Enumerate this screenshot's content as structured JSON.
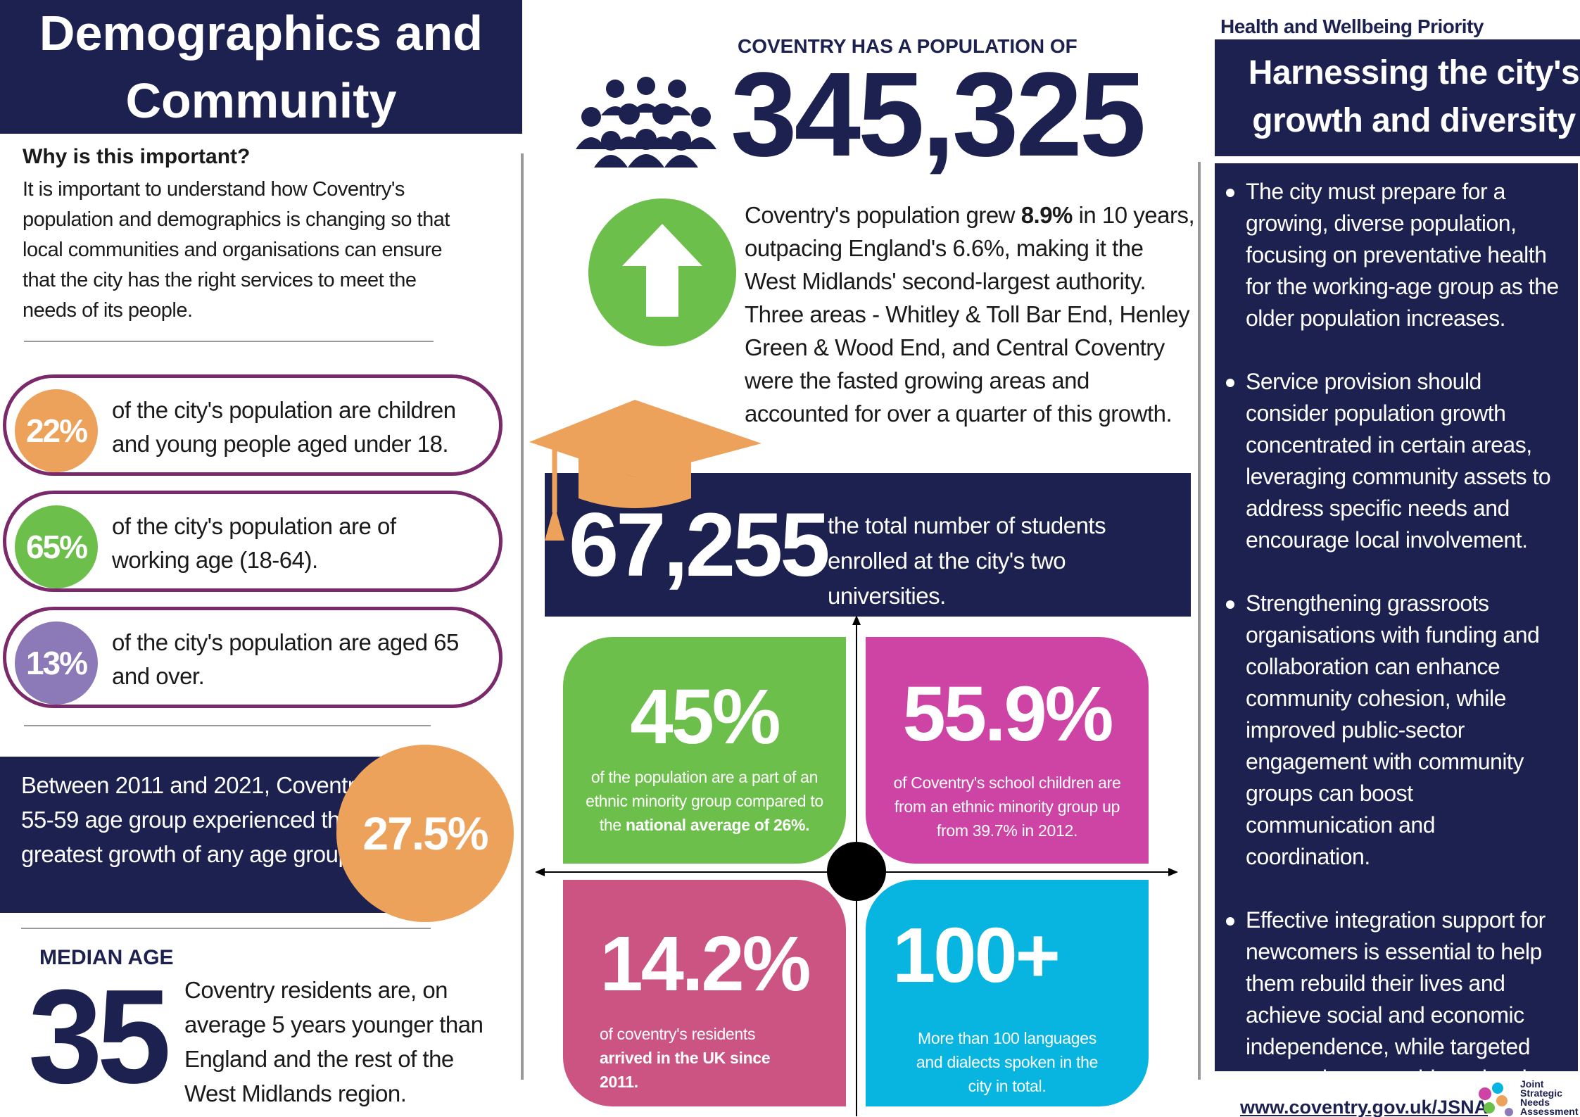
{
  "left": {
    "title": "Demographics  and Community",
    "why_heading": "Why is this important?",
    "why_body": "It is important to understand how Coventry's population and demographics is changing so that local communities and organisations can ensure that the city has the right services to meet the needs of its people.",
    "stats": [
      {
        "value": "22%",
        "text": "of the city's population are children and young people aged under 18.",
        "color": "#eda25b"
      },
      {
        "value": "65%",
        "text": "of the city's population are of working age (18-64).",
        "color": "#6cbf4b"
      },
      {
        "value": "13%",
        "text": "of the city's population are aged 65 and over.",
        "color": "#8c79b8"
      }
    ],
    "growth_text": "Between 2011 and 2021, Coventry's 55-59 age group experienced the greatest growth of any age group.",
    "growth_value": "27.5%",
    "median_label": "MEDIAN AGE",
    "median_value": "35",
    "median_text": "Coventry residents are, on average 5 years younger than England and the rest of the West Midlands region."
  },
  "center": {
    "pop_label": "COVENTRY HAS A POPULATION OF",
    "pop_value": "345,325",
    "growth_pre": "Coventry's population grew ",
    "growth_bold": "8.9%",
    "growth_post": " in 10 years, outpacing England's 6.6%, making it the West Midlands' second-largest authority. Three areas - Whitley & Toll Bar End, Henley Green & Wood End, and Central Coventry were the fasted growing areas and accounted for over a quarter of this growth.",
    "students_value": "67,255",
    "students_text": "the total number of students enrolled at the city's two universities.",
    "quads": {
      "q1": {
        "big": "45%",
        "pre": "of the population are a part of an ethnic minority group compared to the ",
        "bold": "national average of 26%.",
        "post": ""
      },
      "q2": {
        "big": "55.9%",
        "pre": "of Coventry's school children are from an ethnic minority group up from 39.7% in 2012.",
        "bold": "",
        "post": ""
      },
      "q3": {
        "big": "14.2%",
        "pre": "of coventry's residents ",
        "bold": "arrived in the UK since 2011.",
        "post": ""
      },
      "q4": {
        "big": "100+",
        "pre": "More than 100 languages and dialects spoken in the city in total.",
        "bold": "",
        "post": ""
      }
    }
  },
  "right": {
    "priority_label": "Health and Wellbeing Priority",
    "title": "Harnessing the city's growth and diversity",
    "bullets": [
      "The city must prepare for a growing, diverse population, focusing on preventative health for the working-age group as the older population increases.",
      "Service provision should consider population growth concentrated in certain areas, leveraging community assets to address specific needs and encourage local involvement.",
      "Strengthening grassroots organisations with funding and collaboration can enhance community cohesion, while improved public-sector engagement with community groups can boost communication and coordination.",
      "Effective integration support for newcomers is essential to help them rebuild their lives and achieve social and economic independence, while targeted messaging can address local health concerns."
    ]
  },
  "footer": {
    "url": "www.coventry.gov.uk/JSNA",
    "logo_lines": [
      "Joint",
      "Strategic",
      "Needs",
      "Assessment"
    ]
  }
}
